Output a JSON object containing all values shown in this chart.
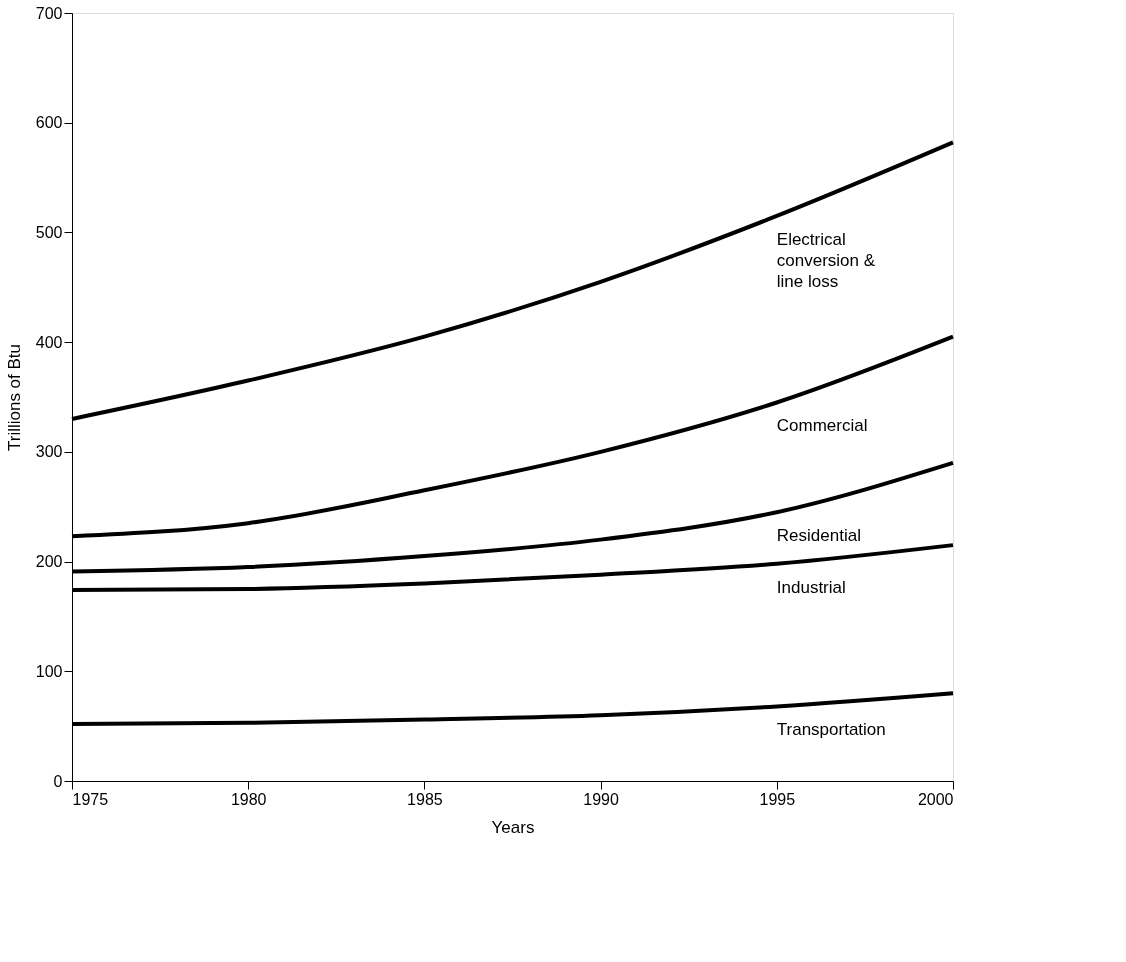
{
  "chart_data": {
    "type": "line",
    "xlabel": "Years",
    "ylabel": "Trillions of Btu",
    "x": [
      1975,
      1980,
      1985,
      1990,
      1995,
      2000
    ],
    "xlim": [
      1975,
      2000
    ],
    "xticks": [
      1975,
      1980,
      1985,
      1990,
      1995,
      2000
    ],
    "ylim": [
      0,
      700
    ],
    "yticks": [
      0,
      100,
      200,
      300,
      400,
      500,
      600,
      700
    ],
    "grid": false,
    "marker": "none",
    "line_style": "solid",
    "series": [
      {
        "name": "Transportation",
        "color": "#000000",
        "values": [
          52,
          53,
          56,
          60,
          68,
          80
        ]
      },
      {
        "name": "Industrial",
        "color": "#000000",
        "values": [
          174,
          175,
          180,
          188,
          198,
          215
        ]
      },
      {
        "name": "Residential",
        "color": "#000000",
        "values": [
          191,
          195,
          205,
          220,
          245,
          290
        ]
      },
      {
        "name": "Commercial",
        "color": "#000000",
        "values": [
          223,
          235,
          265,
          300,
          345,
          405
        ]
      },
      {
        "name": "Electrical conversion & line loss",
        "color": "#000000",
        "values": [
          330,
          365,
          405,
          455,
          515,
          582
        ]
      }
    ]
  }
}
